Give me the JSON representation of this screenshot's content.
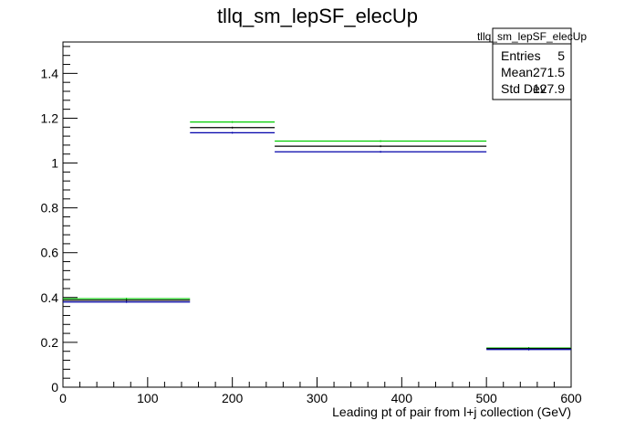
{
  "chart_data": {
    "type": "histogram",
    "title": "tllq_sm_lepSF_elecUp",
    "xlabel": "Leading pt of pair from l+j collection (GeV)",
    "ylabel": "",
    "xlim": [
      0,
      600
    ],
    "ylim": [
      0,
      1.54
    ],
    "x_ticks": [
      0,
      100,
      200,
      300,
      400,
      500,
      600
    ],
    "x_tick_labels": [
      "0",
      "100",
      "200",
      "300",
      "400",
      "500",
      "600"
    ],
    "y_ticks": [
      0,
      0.2,
      0.4,
      0.6,
      0.8,
      1,
      1.2,
      1.4
    ],
    "y_tick_labels": [
      "0",
      "0.2",
      "0.4",
      "0.6",
      "0.8",
      "1",
      "1.2",
      "1.4"
    ],
    "bin_edges": [
      0,
      150,
      250,
      500,
      600
    ],
    "series": [
      {
        "color": "#00cc00",
        "values": [
          0.395,
          1.183,
          1.098,
          0.175
        ]
      },
      {
        "color": "#000000",
        "values": [
          0.388,
          1.158,
          1.075,
          0.172
        ]
      },
      {
        "color": "#0000aa",
        "values": [
          0.38,
          1.135,
          1.05,
          0.168
        ]
      }
    ],
    "grid": false,
    "legend_position": "top-right"
  },
  "stats_box": {
    "title": "tllq_sm_lepSF_elecUp",
    "rows": [
      {
        "label": "Entries",
        "value": "5"
      },
      {
        "label": "Mean",
        "value": "271.5"
      },
      {
        "label": "Std Dev",
        "value": "127.9"
      }
    ]
  }
}
